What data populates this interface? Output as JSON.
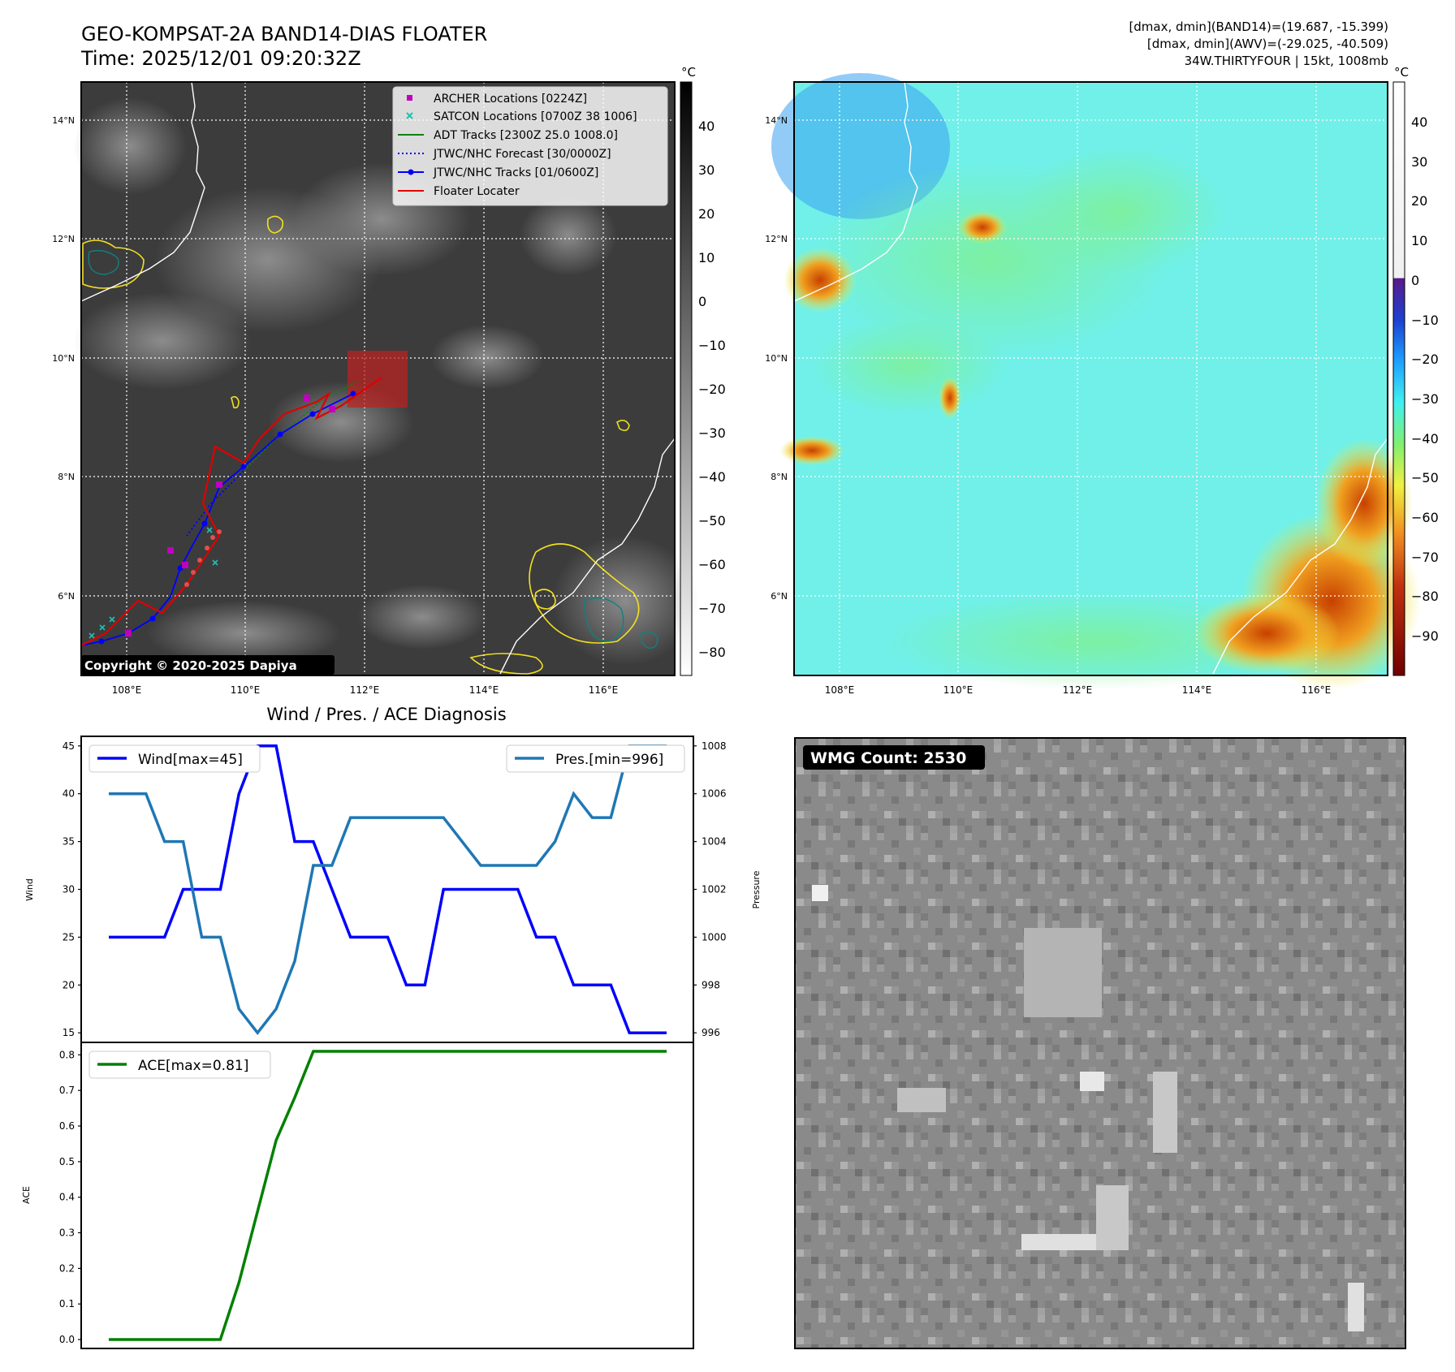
{
  "header": {
    "title": "GEO-KOMPSAT-2A BAND14-DIAS FLOATER",
    "time": "Time: 2025/12/01 09:20:32Z",
    "info_line1": "[dmax, dmin](BAND14)=(19.687, -15.399)",
    "info_line2": "[dmax, dmin](AWV)=(-29.025, -40.509)",
    "info_line3": "34W.THIRTYFOUR | 15kt, 1008mb"
  },
  "map_left": {
    "copyright": "Copyright © 2020-2025 Dapiya",
    "lat_ticks": [
      "14°N",
      "12°N",
      "10°N",
      "8°N",
      "6°N"
    ],
    "lon_ticks": [
      "108°E",
      "110°E",
      "112°E",
      "114°E",
      "116°E"
    ],
    "colorbar": {
      "unit": "°C",
      "ticks": [
        "40",
        "30",
        "20",
        "10",
        "0",
        "−10",
        "−20",
        "−30",
        "−40",
        "−50",
        "−60",
        "−70",
        "−80"
      ]
    },
    "legend": [
      {
        "label": "ARCHER Locations [0224Z]",
        "color": "#c000c0",
        "marker": "square"
      },
      {
        "label": "SATCON Locations [0700Z 38 1006]",
        "color": "#20c0b0",
        "marker": "x"
      },
      {
        "label": "ADT Tracks [2300Z 25.0 1008.0]",
        "color": "#108010",
        "marker": "line"
      },
      {
        "label": "JTWC/NHC Forecast [30/0000Z]",
        "color": "#0000ff",
        "marker": "dotted"
      },
      {
        "label": "JTWC/NHC Tracks [01/0600Z]",
        "color": "#0000ff",
        "marker": "line-dot"
      },
      {
        "label": "Floater Locater",
        "color": "#e00000",
        "marker": "line"
      }
    ]
  },
  "map_right": {
    "lat_ticks": [
      "14°N",
      "12°N",
      "10°N",
      "8°N",
      "6°N"
    ],
    "lon_ticks": [
      "108°E",
      "110°E",
      "112°E",
      "114°E",
      "116°E"
    ],
    "colorbar": {
      "unit": "°C",
      "ticks": [
        "40",
        "30",
        "20",
        "10",
        "0",
        "−10",
        "−20",
        "−30",
        "−40",
        "−50",
        "−60",
        "−70",
        "−80",
        "−90"
      ]
    }
  },
  "wmg": {
    "label": "WMG Count: 2530"
  },
  "chart_data": [
    {
      "type": "line",
      "title": "Wind / Pres. / ACE Diagnosis",
      "ylabel": "Wind",
      "y2label": "Pressure",
      "ylim": [
        14,
        46
      ],
      "y2lim": [
        995.6,
        1008.4
      ],
      "yticks": [
        "45",
        "40",
        "35",
        "30",
        "25",
        "20",
        "15"
      ],
      "y2ticks": [
        "1008",
        "1006",
        "1004",
        "1002",
        "1000",
        "998",
        "996"
      ],
      "x": [
        0,
        1,
        2,
        3,
        4,
        5,
        6,
        7,
        8,
        9,
        10,
        11,
        12,
        13,
        14,
        15,
        16,
        17,
        18,
        19,
        20,
        21,
        22,
        23,
        24,
        25,
        26,
        27,
        28,
        29,
        30
      ],
      "series": [
        {
          "name": "Wind[max=45]",
          "axis": "left",
          "color": "#0000ff",
          "values": [
            25,
            25,
            25,
            25,
            30,
            30,
            30,
            40,
            45,
            45,
            35,
            35,
            30,
            25,
            25,
            25,
            20,
            20,
            30,
            30,
            30,
            30,
            30,
            25,
            25,
            20,
            20,
            20,
            15,
            15,
            15
          ]
        },
        {
          "name": "Pres.[min=996]",
          "axis": "right",
          "color": "#1f77b4",
          "values": [
            1006,
            1006,
            1006,
            1004,
            1004,
            1000,
            1000,
            997,
            996,
            997,
            999,
            1003,
            1003,
            1005,
            1005,
            1005,
            1005,
            1005,
            1005,
            1004,
            1003,
            1003,
            1003,
            1003,
            1004,
            1006,
            1005,
            1005,
            1008,
            1008,
            1008
          ]
        }
      ]
    },
    {
      "type": "line",
      "ylabel": "ACE",
      "ylim": [
        -0.025,
        0.835
      ],
      "yticks": [
        "0.8",
        "0.7",
        "0.6",
        "0.5",
        "0.4",
        "0.3",
        "0.2",
        "0.1",
        "0.0"
      ],
      "x": [
        0,
        1,
        2,
        3,
        4,
        5,
        6,
        7,
        8,
        9,
        10,
        11,
        12,
        13,
        14,
        15,
        16,
        17,
        18,
        19,
        20,
        21,
        22,
        23,
        24,
        25,
        26,
        27,
        28,
        29,
        30
      ],
      "series": [
        {
          "name": "ACE[max=0.81]",
          "color": "#008000",
          "values": [
            0,
            0,
            0,
            0,
            0,
            0,
            0,
            0.16,
            0.36,
            0.56,
            0.68,
            0.81,
            0.81,
            0.81,
            0.81,
            0.81,
            0.81,
            0.81,
            0.81,
            0.81,
            0.81,
            0.81,
            0.81,
            0.81,
            0.81,
            0.81,
            0.81,
            0.81,
            0.81,
            0.81,
            0.81
          ]
        }
      ]
    }
  ]
}
